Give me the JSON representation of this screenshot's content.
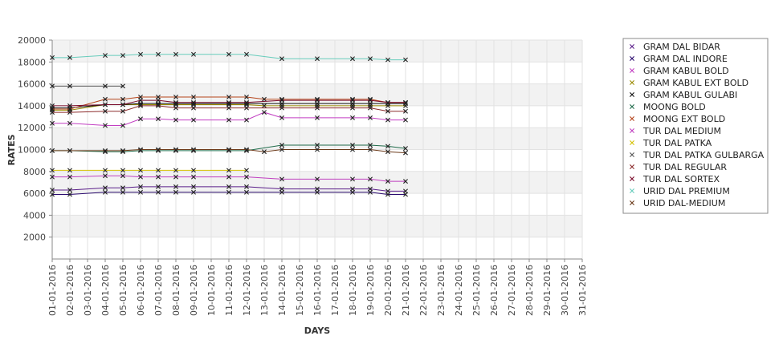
{
  "chart_data": {
    "type": "line",
    "title": "",
    "xlabel": "DAYS",
    "ylabel": "RATES",
    "ylim": [
      0,
      20000
    ],
    "yticks": [
      2000,
      4000,
      6000,
      8000,
      10000,
      12000,
      14000,
      16000,
      18000,
      20000
    ],
    "categories": [
      "01-01-2016",
      "02-01-2016",
      "03-01-2016",
      "04-01-2016",
      "05-01-2016",
      "06-01-2016",
      "07-01-2016",
      "08-01-2016",
      "09-01-2016",
      "10-01-2016",
      "11-01-2016",
      "12-01-2016",
      "13-01-2016",
      "14-01-2016",
      "15-01-2016",
      "16-01-2016",
      "17-01-2016",
      "18-01-2016",
      "19-01-2016",
      "20-01-2016",
      "21-01-2016",
      "22-01-2016",
      "23-01-2016",
      "24-01-2016",
      "25-01-2016",
      "26-01-2016",
      "27-01-2016",
      "28-01-2016",
      "29-01-2016",
      "30-01-2016",
      "31-01-2016"
    ],
    "grid": true,
    "legend_position": "right",
    "series": [
      {
        "name": "GRAM DAL BIDAR",
        "color": "#5b1f8a",
        "values": [
          6300,
          6300,
          null,
          6500,
          6500,
          6600,
          6600,
          6600,
          6600,
          null,
          6600,
          6600,
          null,
          6400,
          null,
          6400,
          null,
          6400,
          6400,
          6200,
          6200,
          null,
          null,
          null,
          null,
          null,
          null,
          null,
          null,
          null,
          null
        ]
      },
      {
        "name": "GRAM DAL INDORE",
        "color": "#2a0a6e",
        "values": [
          5900,
          5900,
          null,
          6100,
          6100,
          6100,
          6100,
          6100,
          6100,
          null,
          6100,
          6100,
          null,
          6100,
          null,
          6100,
          null,
          6100,
          6100,
          5900,
          5900,
          null,
          null,
          null,
          null,
          null,
          null,
          null,
          null,
          null,
          null
        ]
      },
      {
        "name": "GRAM KABUL BOLD",
        "color": "#c23fc2",
        "values": [
          12400,
          12400,
          null,
          12200,
          12200,
          12800,
          12800,
          12700,
          12700,
          null,
          12700,
          12700,
          13400,
          12900,
          null,
          12900,
          null,
          12900,
          12900,
          12700,
          12700,
          null,
          null,
          null,
          null,
          null,
          null,
          null,
          null,
          null,
          null
        ]
      },
      {
        "name": "GRAM KABUL EXT BOLD",
        "color": "#9a8a00",
        "values": [
          13600,
          13600,
          null,
          14100,
          14100,
          14100,
          14100,
          14100,
          14100,
          null,
          14100,
          14100,
          14000,
          14000,
          null,
          14000,
          null,
          14000,
          14000,
          14000,
          14000,
          null,
          null,
          null,
          null,
          null,
          null,
          null,
          null,
          null,
          null
        ]
      },
      {
        "name": "GRAM KABUL GULABI",
        "color": "#111111",
        "values": [
          13800,
          13800,
          null,
          14100,
          14100,
          14200,
          14200,
          14200,
          14200,
          null,
          14200,
          14200,
          null,
          14200,
          null,
          14200,
          null,
          14200,
          14200,
          14200,
          14200,
          null,
          null,
          null,
          null,
          null,
          null,
          null,
          null,
          null,
          null
        ]
      },
      {
        "name": "MOONG BOLD",
        "color": "#1f6b4a",
        "values": [
          9900,
          9900,
          null,
          9800,
          9800,
          9900,
          9900,
          9900,
          9900,
          null,
          9900,
          9900,
          null,
          10400,
          null,
          10400,
          null,
          10400,
          10400,
          10300,
          10100,
          null,
          null,
          null,
          null,
          null,
          null,
          null,
          null,
          null,
          null
        ]
      },
      {
        "name": "MOONG EXT BOLD",
        "color": "#b5451b",
        "values": [
          13700,
          13700,
          null,
          14600,
          14600,
          14800,
          14800,
          14800,
          14800,
          null,
          14800,
          14800,
          14600,
          14600,
          null,
          14600,
          null,
          14600,
          14600,
          14300,
          14300,
          null,
          null,
          null,
          null,
          null,
          null,
          null,
          null,
          null,
          null
        ]
      },
      {
        "name": "TUR DAL MEDIUM",
        "color": "#c040c0",
        "values": [
          7500,
          7500,
          null,
          7600,
          7600,
          7500,
          7500,
          7500,
          7500,
          null,
          7500,
          7500,
          null,
          7300,
          null,
          7300,
          null,
          7300,
          7300,
          7100,
          7100,
          null,
          null,
          null,
          null,
          null,
          null,
          null,
          null,
          null,
          null
        ]
      },
      {
        "name": "TUR DAL PATKA",
        "color": "#d4c000",
        "values": [
          8100,
          8100,
          null,
          8100,
          8100,
          8100,
          8100,
          8100,
          8100,
          null,
          8100,
          8100,
          null,
          null,
          null,
          null,
          null,
          null,
          null,
          null,
          null,
          null,
          null,
          null,
          null,
          null,
          null,
          null,
          null,
          null,
          null
        ]
      },
      {
        "name": "TUR DAL PATKA GULBARGA",
        "color": "#555555",
        "values": [
          15800,
          15800,
          null,
          15800,
          15800,
          null,
          null,
          null,
          null,
          null,
          null,
          null,
          null,
          null,
          null,
          null,
          null,
          null,
          null,
          null,
          null,
          null,
          null,
          null,
          null,
          null,
          null,
          null,
          null,
          null,
          null
        ]
      },
      {
        "name": "TUR DAL REGULAR",
        "color": "#8b2a2a",
        "values": [
          13400,
          13400,
          null,
          13500,
          13500,
          14000,
          14000,
          13800,
          13800,
          null,
          13800,
          13800,
          null,
          13800,
          null,
          13800,
          null,
          13800,
          13800,
          13500,
          13500,
          null,
          null,
          null,
          null,
          null,
          null,
          null,
          null,
          null,
          null
        ]
      },
      {
        "name": "TUR DAL SORTEX",
        "color": "#7a0a2a",
        "values": [
          14000,
          14000,
          null,
          14100,
          14100,
          14500,
          14500,
          14300,
          14300,
          null,
          14300,
          14300,
          null,
          14500,
          null,
          14500,
          null,
          14500,
          14500,
          14300,
          14300,
          null,
          null,
          null,
          null,
          null,
          null,
          null,
          null,
          null,
          null
        ]
      },
      {
        "name": "URID DAL PREMIUM",
        "color": "#66ccbb",
        "values": [
          18400,
          18400,
          null,
          18600,
          18600,
          18700,
          18700,
          18700,
          18700,
          null,
          18700,
          18700,
          null,
          18300,
          null,
          18300,
          null,
          18300,
          18300,
          18200,
          18200,
          null,
          null,
          null,
          null,
          null,
          null,
          null,
          null,
          null,
          null
        ]
      },
      {
        "name": "URID DAL-MEDIUM",
        "color": "#6b3a1a",
        "values": [
          9900,
          9900,
          null,
          9900,
          9900,
          10000,
          10000,
          10000,
          10000,
          null,
          10000,
          10000,
          9800,
          10000,
          null,
          10000,
          null,
          10000,
          10000,
          9800,
          9700,
          null,
          null,
          null,
          null,
          null,
          null,
          null,
          null,
          null,
          null
        ]
      }
    ]
  }
}
